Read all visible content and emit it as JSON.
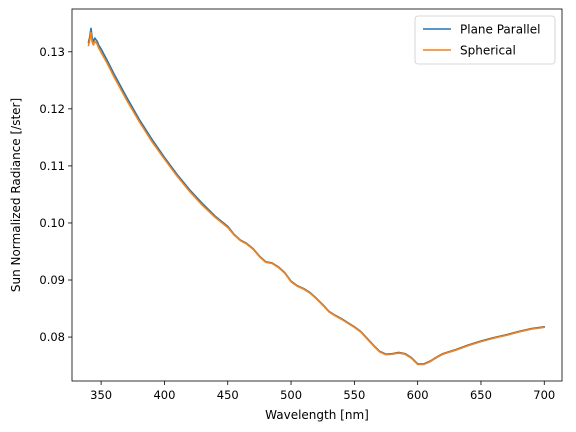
{
  "chart_data": {
    "type": "line",
    "title": "",
    "xlabel": "Wavelength [nm]",
    "ylabel": "Sun Normalized Radiance [/ster]",
    "xlim": [
      327,
      714
    ],
    "ylim": [
      0.0723,
      0.1375
    ],
    "xticks": [
      350,
      400,
      450,
      500,
      550,
      600,
      650,
      700
    ],
    "yticks": [
      0.08,
      0.09,
      0.1,
      0.11,
      0.12,
      0.13
    ],
    "xtick_labels": [
      "350",
      "400",
      "450",
      "500",
      "550",
      "600",
      "650",
      "700"
    ],
    "ytick_labels": [
      "0.08",
      "0.09",
      "0.10",
      "0.11",
      "0.12",
      "0.13"
    ],
    "grid": false,
    "legend": "top-right",
    "series": [
      {
        "name": "Plane Parallel",
        "color": "#1f77b4",
        "x": [
          340,
          341,
          342,
          343,
          344,
          345,
          346,
          347,
          348,
          350,
          355,
          360,
          370,
          380,
          390,
          400,
          410,
          420,
          430,
          440,
          445,
          450,
          455,
          460,
          465,
          470,
          475,
          480,
          485,
          490,
          495,
          500,
          505,
          510,
          515,
          520,
          525,
          530,
          535,
          540,
          545,
          550,
          555,
          560,
          565,
          570,
          575,
          580,
          585,
          590,
          595,
          600,
          605,
          610,
          615,
          620,
          630,
          640,
          650,
          660,
          670,
          680,
          690,
          700
        ],
        "y": [
          0.1316,
          0.1326,
          0.1341,
          0.1324,
          0.1318,
          0.1324,
          0.1321,
          0.1318,
          0.1312,
          0.1305,
          0.1284,
          0.1262,
          0.1221,
          0.1182,
          0.1147,
          0.1115,
          0.1085,
          0.1058,
          0.1034,
          0.1012,
          0.1003,
          0.0994,
          0.098,
          0.097,
          0.0964,
          0.0955,
          0.0942,
          0.0932,
          0.093,
          0.0923,
          0.0913,
          0.0898,
          0.089,
          0.0885,
          0.0878,
          0.0868,
          0.0857,
          0.0845,
          0.0838,
          0.0832,
          0.0825,
          0.0818,
          0.081,
          0.0798,
          0.0786,
          0.0775,
          0.077,
          0.0771,
          0.0773,
          0.0771,
          0.0764,
          0.0753,
          0.0753,
          0.0758,
          0.0765,
          0.0771,
          0.0778,
          0.0786,
          0.0793,
          0.0799,
          0.0804,
          0.081,
          0.0815,
          0.0818
        ]
      },
      {
        "name": "Spherical",
        "color": "#ff7f0e",
        "x": [
          340,
          341,
          342,
          343,
          344,
          345,
          346,
          347,
          348,
          350,
          355,
          360,
          370,
          380,
          390,
          400,
          410,
          420,
          430,
          440,
          445,
          450,
          455,
          460,
          465,
          470,
          475,
          480,
          485,
          490,
          495,
          500,
          505,
          510,
          515,
          520,
          525,
          530,
          535,
          540,
          545,
          550,
          555,
          560,
          565,
          570,
          575,
          580,
          585,
          590,
          595,
          600,
          605,
          610,
          615,
          620,
          630,
          640,
          650,
          660,
          670,
          680,
          690,
          700
        ],
        "y": [
          0.1311,
          0.132,
          0.1334,
          0.1316,
          0.1312,
          0.1318,
          0.1316,
          0.1313,
          0.1307,
          0.1299,
          0.1279,
          0.1257,
          0.1216,
          0.1178,
          0.1143,
          0.1112,
          0.1082,
          0.1055,
          0.1031,
          0.101,
          0.1001,
          0.0992,
          0.0979,
          0.0969,
          0.0963,
          0.0954,
          0.0941,
          0.0931,
          0.0929,
          0.0922,
          0.0912,
          0.0897,
          0.0889,
          0.0884,
          0.0877,
          0.0867,
          0.0856,
          0.0844,
          0.0837,
          0.0831,
          0.0824,
          0.0817,
          0.0809,
          0.0797,
          0.0785,
          0.0774,
          0.0769,
          0.077,
          0.0772,
          0.077,
          0.0763,
          0.0752,
          0.0752,
          0.0757,
          0.0764,
          0.077,
          0.0777,
          0.0785,
          0.0792,
          0.0798,
          0.0803,
          0.0809,
          0.0814,
          0.0817
        ]
      }
    ]
  }
}
